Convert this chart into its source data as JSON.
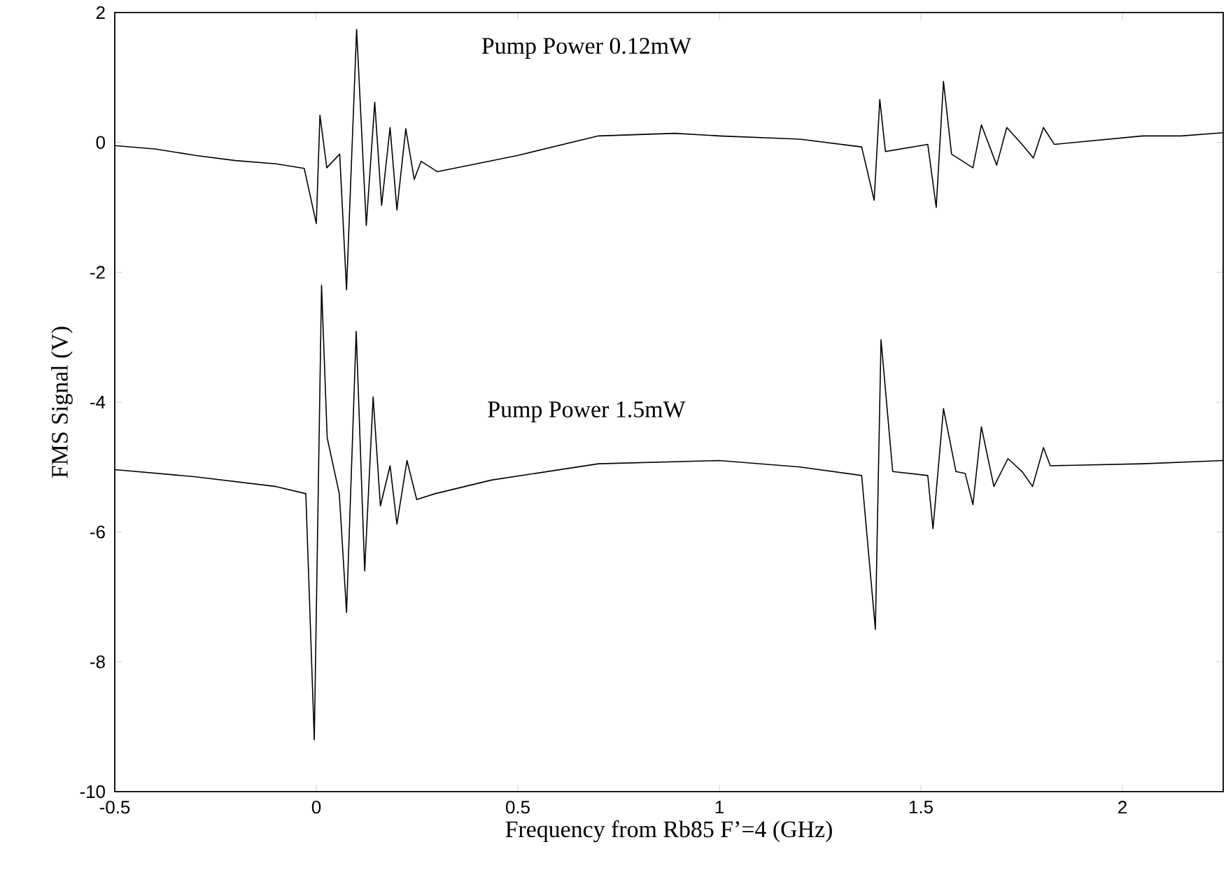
{
  "chart_data": {
    "type": "line",
    "xlabel": "Frequency from Rb85 F’=4 (GHz)",
    "ylabel": "FMS Signal (V)",
    "xlim": [
      -0.5,
      2.25
    ],
    "xticks": [
      -0.5,
      0,
      0.5,
      1,
      1.5,
      2
    ],
    "ylim": [
      -10,
      2
    ],
    "yticks": [
      -10,
      -8,
      -6,
      -4,
      -2,
      0,
      2
    ],
    "grid": false,
    "legend": false,
    "marker": "none",
    "line_style": "solid",
    "series": [
      {
        "name": "Pump Power 0.12mW",
        "color": "#000000",
        "x": [
          -0.5,
          -0.4,
          -0.3,
          -0.2,
          -0.1,
          -0.03,
          0,
          0.009,
          0.026,
          0.058,
          0.075,
          0.1,
          0.124,
          0.145,
          0.162,
          0.183,
          0.2,
          0.222,
          0.243,
          0.26,
          0.3,
          0.5,
          0.7,
          0.889,
          1.0,
          1.2,
          1.353,
          1.384,
          1.398,
          1.412,
          1.517,
          1.538,
          1.556,
          1.576,
          1.629,
          1.65,
          1.688,
          1.713,
          1.751,
          1.779,
          1.804,
          1.831,
          2.05,
          2.146,
          2.25
        ],
        "values": [
          -0.05,
          -0.1,
          -0.2,
          -0.28,
          -0.33,
          -0.4,
          -1.25,
          0.42,
          -0.39,
          -0.18,
          -2.27,
          1.74,
          -1.28,
          0.62,
          -0.97,
          0.23,
          -1.04,
          0.21,
          -0.57,
          -0.29,
          -0.45,
          -0.2,
          0.1,
          0.14,
          0.1,
          0.05,
          -0.07,
          -0.89,
          0.66,
          -0.14,
          -0.03,
          -1.0,
          0.94,
          -0.18,
          -0.39,
          0.27,
          -0.35,
          0.23,
          -0.03,
          -0.24,
          0.23,
          -0.03,
          0.1,
          0.1,
          0.15
        ]
      },
      {
        "name": "Pump Power 1.5mW",
        "color": "#000000",
        "x": [
          -0.5,
          -0.3,
          -0.1,
          -0.026,
          -0.005,
          0.013,
          0.027,
          0.057,
          0.075,
          0.099,
          0.12,
          0.141,
          0.159,
          0.183,
          0.2,
          0.225,
          0.249,
          0.295,
          0.435,
          0.7,
          1.0,
          1.2,
          1.353,
          1.387,
          1.401,
          1.43,
          1.517,
          1.53,
          1.556,
          1.587,
          1.61,
          1.629,
          1.65,
          1.681,
          1.716,
          1.751,
          1.777,
          1.804,
          1.821,
          2.05,
          2.25
        ],
        "values": [
          -5.04,
          -5.15,
          -5.3,
          -5.41,
          -9.2,
          -2.2,
          -4.55,
          -5.41,
          -7.24,
          -2.91,
          -6.6,
          -3.92,
          -5.6,
          -4.98,
          -5.88,
          -4.9,
          -5.5,
          -5.41,
          -5.2,
          -4.95,
          -4.9,
          -5.0,
          -5.13,
          -7.5,
          -3.04,
          -5.07,
          -5.13,
          -5.95,
          -4.1,
          -5.07,
          -5.1,
          -5.58,
          -4.38,
          -5.3,
          -4.87,
          -5.07,
          -5.3,
          -4.7,
          -4.98,
          -4.95,
          -4.9
        ]
      }
    ]
  }
}
